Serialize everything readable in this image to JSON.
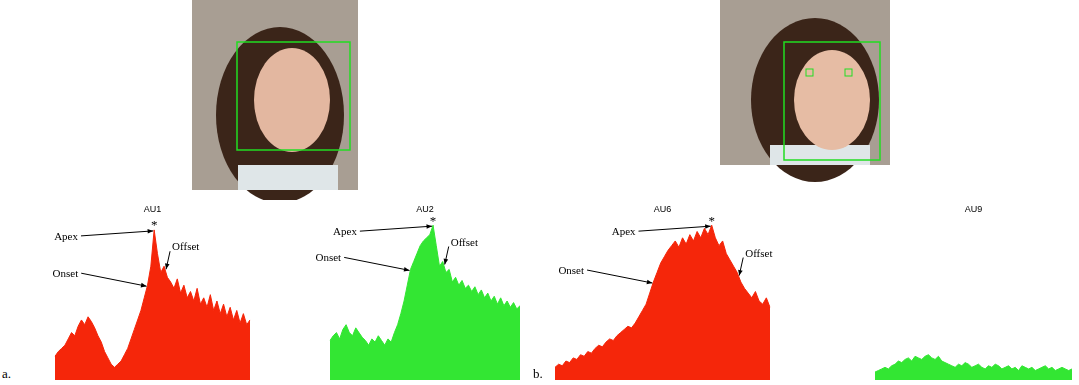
{
  "panel_labels": [
    "a.",
    "b."
  ],
  "chart_data": [
    {
      "type": "area",
      "title": "AU1",
      "color": "#f5260a",
      "ylim": [
        0,
        100
      ],
      "grid": false,
      "tick_labels": false,
      "values": [
        15,
        18,
        20,
        22,
        26,
        30,
        28,
        34,
        38,
        35,
        40,
        37,
        33,
        28,
        24,
        18,
        14,
        10,
        8,
        10,
        12,
        16,
        20,
        26,
        32,
        38,
        44,
        52,
        60,
        72,
        95,
        80,
        68,
        72,
        65,
        62,
        58,
        64,
        55,
        60,
        52,
        56,
        50,
        58,
        48,
        52,
        46,
        54,
        44,
        50,
        42,
        48,
        40,
        46,
        38,
        44,
        36,
        42,
        35,
        38
      ],
      "annotations": [
        {
          "text": "Apex",
          "index": 30
        },
        {
          "text": "Onset",
          "index": 28
        },
        {
          "text": "Offset",
          "index": 33
        },
        {
          "text": "*",
          "index": 30
        }
      ]
    },
    {
      "type": "area",
      "title": "AU2",
      "color": "#33e633",
      "ylim": [
        0,
        100
      ],
      "grid": false,
      "tick_labels": false,
      "values": [
        25,
        28,
        30,
        26,
        32,
        35,
        30,
        28,
        33,
        30,
        27,
        25,
        22,
        26,
        24,
        28,
        25,
        22,
        26,
        24,
        30,
        35,
        42,
        50,
        60,
        70,
        75,
        80,
        85,
        88,
        90,
        92,
        98,
        85,
        72,
        75,
        68,
        70,
        62,
        65,
        60,
        63,
        58,
        60,
        56,
        59,
        54,
        57,
        52,
        55,
        50,
        53,
        48,
        52,
        47,
        50,
        46,
        49,
        45,
        47
      ],
      "annotations": [
        {
          "text": "Apex",
          "index": 32
        },
        {
          "text": "Onset",
          "index": 25
        },
        {
          "text": "Offset",
          "index": 35
        },
        {
          "text": "*",
          "index": 32
        }
      ]
    },
    {
      "type": "area",
      "title": "AU6",
      "color": "#f5260a",
      "ylim": [
        0,
        100
      ],
      "grid": false,
      "tick_labels": false,
      "values": [
        8,
        10,
        9,
        12,
        11,
        14,
        13,
        16,
        15,
        18,
        17,
        20,
        22,
        21,
        24,
        26,
        25,
        28,
        30,
        32,
        34,
        33,
        36,
        40,
        44,
        48,
        55,
        62,
        68,
        74,
        78,
        82,
        85,
        88,
        84,
        90,
        86,
        92,
        88,
        94,
        90,
        96,
        92,
        98,
        90,
        85,
        88,
        80,
        76,
        72,
        68,
        62,
        58,
        55,
        52,
        56,
        50,
        48,
        52,
        46
      ],
      "annotations": [
        {
          "text": "Apex",
          "index": 43
        },
        {
          "text": "Onset",
          "index": 27
        },
        {
          "text": "Offset",
          "index": 50
        },
        {
          "text": "*",
          "index": 43
        }
      ]
    },
    {
      "type": "area",
      "title": "AU9",
      "color": "#33e633",
      "ylim": [
        0,
        100
      ],
      "grid": false,
      "tick_labels": false,
      "values": [
        5,
        6,
        7,
        8,
        7,
        9,
        10,
        12,
        11,
        13,
        14,
        12,
        15,
        14,
        13,
        15,
        16,
        14,
        13,
        15,
        12,
        11,
        10,
        9,
        8,
        10,
        9,
        11,
        10,
        8,
        9,
        10,
        8,
        7,
        9,
        8,
        10,
        9,
        7,
        8,
        9,
        7,
        8,
        6,
        9,
        8,
        7,
        8,
        6,
        7,
        8,
        9,
        7,
        8,
        6,
        7,
        8,
        7,
        6,
        7
      ]
    }
  ]
}
